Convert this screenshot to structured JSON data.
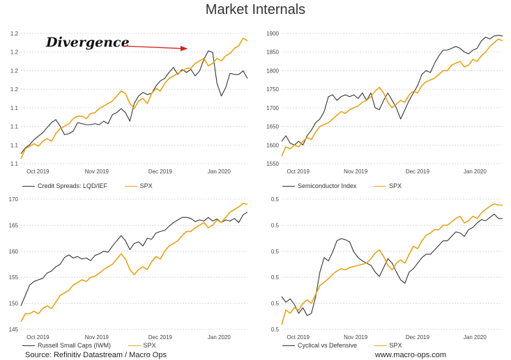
{
  "title": "Market Internals",
  "footer_left": "Source: Refinitiv Datastream / Macro Ops",
  "footer_right": "www.macro-ops.com",
  "annotation": "Divergence",
  "colors": {
    "dark": "#333333",
    "spx": "#E8A317",
    "arrow": "#D62020"
  },
  "chart_data": [
    {
      "type": "line",
      "x_ticks": [
        "Oct 2019",
        "Nov 2019",
        "Dec 2019",
        "Jan 2020"
      ],
      "y_ticks": [
        "1.1",
        "1.1",
        "1.1",
        "1.1",
        "1.2",
        "1.2",
        "1.2",
        "1.2"
      ],
      "legend_placement": "bottom",
      "grid": true,
      "series": [
        {
          "name": "Credit Spreads: LQD/IEF",
          "color": "#333333",
          "values": [
            1.1,
            1.112,
            1.118,
            1.128,
            1.135,
            1.142,
            1.152,
            1.162,
            1.168,
            1.155,
            1.138,
            1.14,
            1.145,
            1.162,
            1.16,
            1.158,
            1.158,
            1.16,
            1.158,
            1.165,
            1.16,
            1.178,
            1.182,
            1.19,
            1.182,
            1.165,
            1.2,
            1.215,
            1.222,
            1.218,
            1.22,
            1.235,
            1.245,
            1.25,
            1.262,
            1.272,
            1.258,
            1.268,
            1.262,
            1.268,
            1.255,
            1.265,
            1.288,
            1.305,
            1.302,
            1.24,
            1.215,
            1.232,
            1.26,
            1.258,
            1.258,
            1.265,
            1.25
          ]
        },
        {
          "name": "SPX",
          "color": "#E8A317",
          "values": [
            1.09,
            1.11,
            1.115,
            1.12,
            1.115,
            1.125,
            1.13,
            1.125,
            1.14,
            1.15,
            1.155,
            1.16,
            1.17,
            1.175,
            1.175,
            1.17,
            1.18,
            1.182,
            1.19,
            1.195,
            1.2,
            1.205,
            1.215,
            1.225,
            1.22,
            1.2,
            1.19,
            1.205,
            1.21,
            1.2,
            1.22,
            1.23,
            1.225,
            1.24,
            1.25,
            1.255,
            1.26,
            1.265,
            1.27,
            1.27,
            1.28,
            1.285,
            1.29,
            1.275,
            1.28,
            1.29,
            1.285,
            1.295,
            1.3,
            1.31,
            1.315,
            1.33,
            1.325
          ]
        }
      ]
    },
    {
      "type": "line",
      "x_ticks": [
        "Oct 2019",
        "Nov 2019",
        "Dec 2019",
        "Jan 2020"
      ],
      "y_ticks": [
        "1550",
        "1600",
        "1650",
        "1700",
        "1750",
        "1800",
        "1850",
        "1900"
      ],
      "ylim": [
        1550,
        1900
      ],
      "legend_placement": "bottom",
      "grid": true,
      "series": [
        {
          "name": "Semiconductor Index",
          "color": "#333333",
          "values": [
            1610,
            1625,
            1605,
            1600,
            1610,
            1600,
            1625,
            1640,
            1660,
            1670,
            1690,
            1730,
            1735,
            1720,
            1730,
            1735,
            1730,
            1735,
            1725,
            1740,
            1720,
            1740,
            1700,
            1695,
            1720,
            1740,
            1720,
            1700,
            1670,
            1695,
            1720,
            1740,
            1760,
            1790,
            1800,
            1795,
            1820,
            1840,
            1855,
            1855,
            1860,
            1865,
            1860,
            1850,
            1845,
            1855,
            1860,
            1880,
            1890,
            1885,
            1893,
            1895,
            1893
          ]
        },
        {
          "name": "SPX",
          "color": "#E8A317",
          "values": [
            1570,
            1595,
            1590,
            1600,
            1595,
            1610,
            1620,
            1615,
            1635,
            1650,
            1655,
            1660,
            1670,
            1680,
            1690,
            1685,
            1695,
            1700,
            1705,
            1715,
            1720,
            1730,
            1745,
            1755,
            1740,
            1715,
            1700,
            1710,
            1720,
            1715,
            1735,
            1745,
            1740,
            1760,
            1770,
            1775,
            1780,
            1790,
            1800,
            1800,
            1815,
            1820,
            1825,
            1810,
            1815,
            1830,
            1825,
            1840,
            1850,
            1865,
            1875,
            1885,
            1880
          ]
        }
      ]
    },
    {
      "type": "line",
      "x_ticks": [
        "Oct 2019",
        "Nov 2019",
        "Dec 2019",
        "Jan 2020"
      ],
      "y_ticks": [
        "145",
        "150",
        "155",
        "160",
        "165",
        "170"
      ],
      "ylim": [
        145,
        170
      ],
      "legend_placement": "bottom",
      "grid": true,
      "series": [
        {
          "name": "Russell Small Caps (IWM)",
          "color": "#333333",
          "values": [
            149.5,
            151.5,
            153.5,
            154.2,
            154.5,
            154.8,
            155.8,
            156.2,
            157.0,
            157.5,
            158.8,
            159.3,
            158.7,
            159.0,
            158.5,
            158.7,
            158.2,
            159.2,
            159.5,
            160.0,
            159.8,
            161.0,
            162.0,
            163.0,
            162.0,
            160.3,
            161.5,
            161.8,
            161.0,
            162.5,
            162.3,
            163.5,
            163.8,
            164.0,
            164.8,
            165.5,
            166.0,
            166.5,
            166.5,
            166.3,
            165.7,
            166.0,
            165.8,
            166.5,
            165.8,
            166.2,
            165.5,
            166.0,
            165.8,
            166.3,
            165.5,
            167.0,
            167.5
          ]
        },
        {
          "name": "SPX",
          "color": "#E8A317",
          "values": [
            146.5,
            148.0,
            148.0,
            148.5,
            148.0,
            149.0,
            149.5,
            149.0,
            150.2,
            151.5,
            152.0,
            152.5,
            153.5,
            154.0,
            154.5,
            154.2,
            155.0,
            155.2,
            155.8,
            156.5,
            157.0,
            157.5,
            158.5,
            159.5,
            158.5,
            156.5,
            155.5,
            156.5,
            157.0,
            156.5,
            158.0,
            159.0,
            158.5,
            160.0,
            161.0,
            161.5,
            162.0,
            163.0,
            163.8,
            163.8,
            164.5,
            165.0,
            165.5,
            164.5,
            165.0,
            166.0,
            165.5,
            166.5,
            167.5,
            168.0,
            168.5,
            169.2,
            169.0
          ]
        }
      ]
    },
    {
      "type": "line",
      "x_ticks": [
        "Oct 2019",
        "Nov 2019",
        "Dec 2019",
        "Jan 2020"
      ],
      "y_ticks": [
        "0.5",
        "0.5",
        "0.5",
        "0.5",
        "0.5",
        "0.5"
      ],
      "legend_placement": "bottom",
      "grid": true,
      "series": [
        {
          "name": "Cyclical vs Defensive",
          "color": "#333333",
          "values": [
            0.44,
            0.435,
            0.438,
            0.433,
            0.425,
            0.43,
            0.423,
            0.425,
            0.44,
            0.462,
            0.475,
            0.472,
            0.48,
            0.49,
            0.492,
            0.491,
            0.489,
            0.48,
            0.475,
            0.472,
            0.47,
            0.468,
            0.462,
            0.458,
            0.466,
            0.474,
            0.47,
            0.462,
            0.455,
            0.452,
            0.462,
            0.465,
            0.47,
            0.475,
            0.478,
            0.478,
            0.482,
            0.486,
            0.49,
            0.49,
            0.494,
            0.498,
            0.497,
            0.494,
            0.5,
            0.502,
            0.506,
            0.509,
            0.508,
            0.511,
            0.514,
            0.51,
            0.51
          ]
        },
        {
          "name": "SPX",
          "color": "#E8A317",
          "values": [
            0.415,
            0.428,
            0.425,
            0.43,
            0.428,
            0.434,
            0.437,
            0.434,
            0.442,
            0.45,
            0.453,
            0.456,
            0.46,
            0.463,
            0.465,
            0.464,
            0.466,
            0.467,
            0.468,
            0.469,
            0.47,
            0.474,
            0.479,
            0.482,
            0.476,
            0.468,
            0.464,
            0.47,
            0.473,
            0.47,
            0.478,
            0.485,
            0.483,
            0.49,
            0.495,
            0.497,
            0.5,
            0.5,
            0.504,
            0.504,
            0.507,
            0.51,
            0.512,
            0.506,
            0.508,
            0.512,
            0.51,
            0.515,
            0.518,
            0.521,
            0.523,
            0.522,
            0.522
          ]
        }
      ]
    }
  ]
}
